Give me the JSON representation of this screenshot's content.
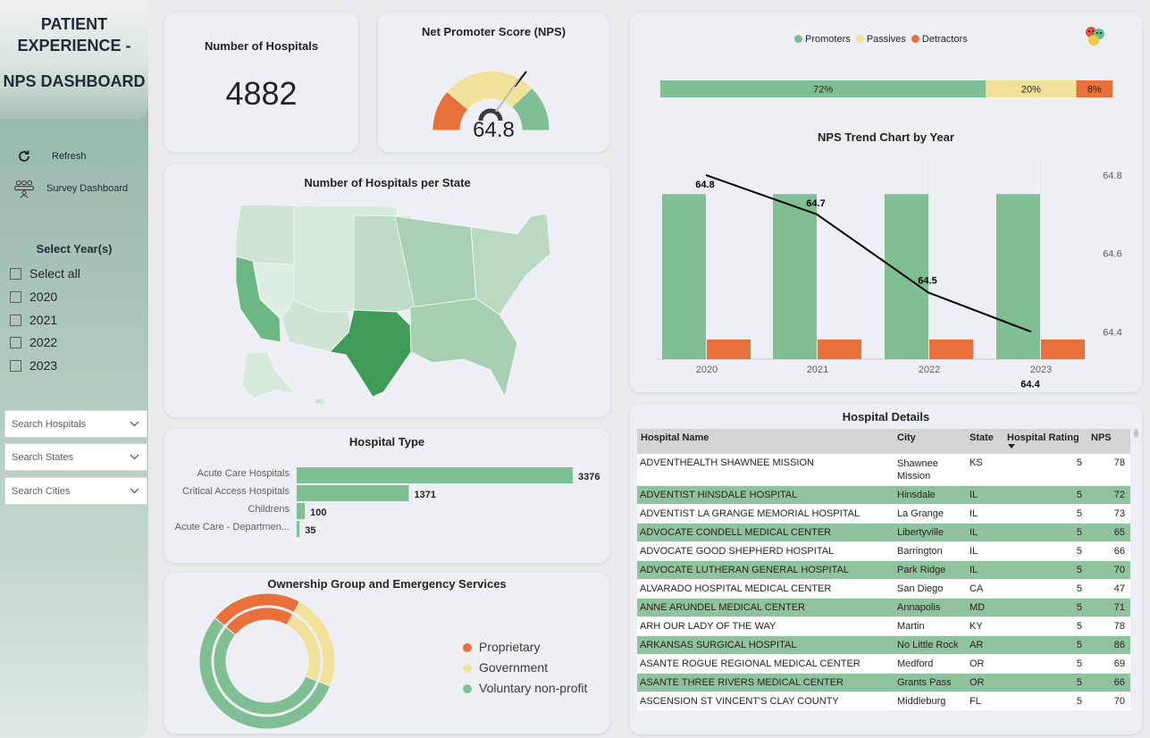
{
  "sidebar": {
    "title_lines": [
      "PATIENT",
      "EXPERIENCE -",
      "NPS DASHBOARD"
    ],
    "nav": [
      {
        "label": "Refresh",
        "icon": "refresh-icon"
      },
      {
        "label": "Survey Dashboard",
        "icon": "people-survey-icon"
      }
    ],
    "year_filter": {
      "title": "Select Year(s)",
      "options": [
        "Select all",
        "2020",
        "2021",
        "2022",
        "2023"
      ]
    },
    "searches": [
      {
        "placeholder": "Search Hospitals"
      },
      {
        "placeholder": "Search States"
      },
      {
        "placeholder": "Search Cities"
      }
    ]
  },
  "kpi_hospitals": {
    "title": "Number of Hospitals",
    "value": "4882"
  },
  "nps_gauge": {
    "title": "Net Promoter Score (NPS)",
    "value": "64.8"
  },
  "nps_distribution": {
    "legend": [
      {
        "label": "Promoters",
        "color": "#7fbf93"
      },
      {
        "label": "Passives",
        "color": "#f2e299"
      },
      {
        "label": "Detractors",
        "color": "#e8703a"
      }
    ],
    "icon": "emoji-faces-icon"
  },
  "map_card": {
    "title": "Number of Hospitals per State"
  },
  "hospital_type": {
    "title": "Hospital Type"
  },
  "ownership": {
    "title": "Ownership Group and Emergency Services",
    "legend": [
      {
        "label": "Proprietary",
        "color": "#e8703a"
      },
      {
        "label": "Government",
        "color": "#f2e299"
      },
      {
        "label": "Voluntary non-profit",
        "color": "#7fbf93"
      }
    ]
  },
  "trend": {
    "title": "NPS Trend Chart by Year"
  },
  "chart_data": [
    {
      "type": "bar",
      "orientation": "horizontal-stacked",
      "categories": [
        "Promoters",
        "Passives",
        "Detractors"
      ],
      "values": [
        72,
        20,
        8
      ],
      "labels": [
        "72%",
        "20%",
        "8%"
      ],
      "colors": [
        "#7fbf93",
        "#f2e299",
        "#e8703a"
      ]
    },
    {
      "type": "bar",
      "title": "Hospital Type",
      "orientation": "horizontal",
      "categories": [
        "Acute Care Hospitals",
        "Critical Access Hospitals",
        "Childrens",
        "Acute Care - Departmen..."
      ],
      "values": [
        3376,
        1371,
        100,
        35
      ],
      "color": "#7fbf93"
    },
    {
      "type": "line",
      "title": "NPS Trend Chart by Year",
      "x": [
        "2020",
        "2021",
        "2022",
        "2023"
      ],
      "series": [
        {
          "name": "NPS",
          "values": [
            64.8,
            64.7,
            64.5,
            64.4
          ],
          "labels": [
            "64.8",
            "64.7",
            "64.5",
            "64.4"
          ]
        }
      ],
      "bar_series": [
        {
          "color": "#7fbf93",
          "values": [
            0.91,
            0.91,
            0.91,
            0.91
          ]
        },
        {
          "color": "#e8703a",
          "values": [
            0.09,
            0.09,
            0.09,
            0.09
          ]
        }
      ],
      "y_ticks": [
        "64.8",
        "64.6",
        "64.4"
      ],
      "ylim": [
        64.33,
        64.85
      ]
    },
    {
      "type": "pie",
      "title": "Ownership Group and Emergency Services",
      "variant": "donut",
      "categories": [
        "Proprietary",
        "Government",
        "Voluntary non-profit"
      ],
      "values": [
        22,
        23,
        55
      ],
      "colors": [
        "#e8703a",
        "#f2e299",
        "#7fbf93"
      ]
    }
  ],
  "table": {
    "title": "Hospital Details",
    "columns": [
      "Hospital Name",
      "City",
      "State",
      "Hospital Rating",
      "NPS"
    ],
    "rows": [
      [
        "ADVENTHEALTH SHAWNEE MISSION",
        "Shawnee Mission",
        "KS",
        "5",
        "78"
      ],
      [
        "ADVENTIST HINSDALE HOSPITAL",
        "Hinsdale",
        "IL",
        "5",
        "72"
      ],
      [
        "ADVENTIST LA GRANGE MEMORIAL HOSPITAL",
        "La Grange",
        "IL",
        "5",
        "73"
      ],
      [
        "ADVOCATE CONDELL MEDICAL CENTER",
        "Libertyville",
        "IL",
        "5",
        "65"
      ],
      [
        "ADVOCATE GOOD SHEPHERD HOSPITAL",
        "Barrington",
        "IL",
        "5",
        "66"
      ],
      [
        "ADVOCATE LUTHERAN GENERAL HOSPITAL",
        "Park Ridge",
        "IL",
        "5",
        "70"
      ],
      [
        "ALVARADO HOSPITAL MEDICAL CENTER",
        "San Diego",
        "CA",
        "5",
        "47"
      ],
      [
        "ANNE ARUNDEL MEDICAL CENTER",
        "Annapolis",
        "MD",
        "5",
        "71"
      ],
      [
        "ARH OUR LADY OF THE WAY",
        "Martin",
        "KY",
        "5",
        "78"
      ],
      [
        "ARKANSAS SURGICAL HOSPITAL",
        "No Little Rock",
        "AR",
        "5",
        "86"
      ],
      [
        "ASANTE ROGUE REGIONAL MEDICAL CENTER",
        "Medford",
        "OR",
        "5",
        "69"
      ],
      [
        "ASANTE THREE RIVERS MEDICAL CENTER",
        "Grants Pass",
        "OR",
        "5",
        "66"
      ],
      [
        "ASCENSION ST VINCENT'S CLAY COUNTY",
        "Middleburg",
        "FL",
        "5",
        "70"
      ]
    ]
  }
}
